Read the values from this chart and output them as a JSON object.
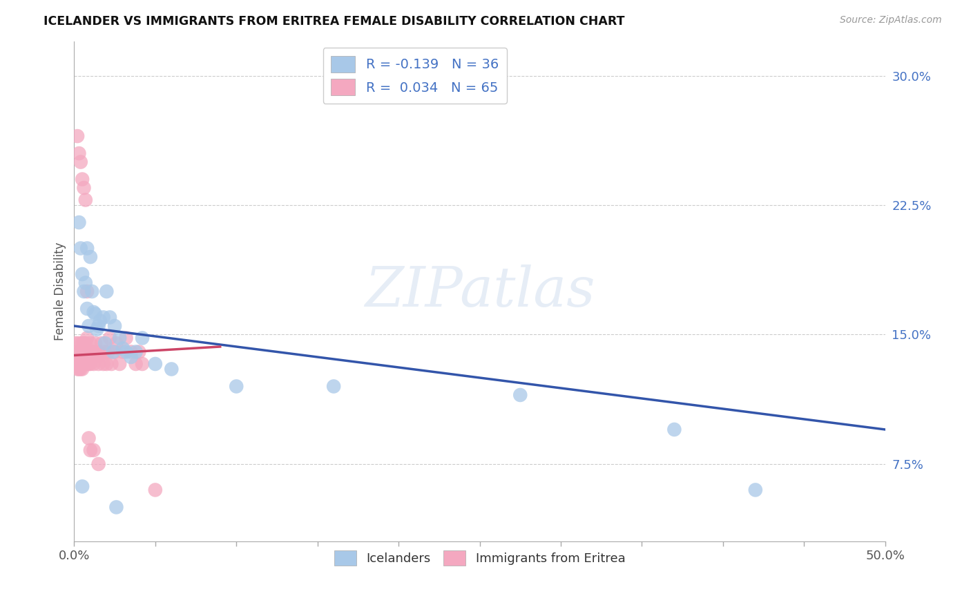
{
  "title": "ICELANDER VS IMMIGRANTS FROM ERITREA FEMALE DISABILITY CORRELATION CHART",
  "source": "Source: ZipAtlas.com",
  "ylabel": "Female Disability",
  "xlim": [
    0,
    0.5
  ],
  "ylim": [
    0.03,
    0.32
  ],
  "xticks": [
    0.0,
    0.05,
    0.1,
    0.15,
    0.2,
    0.25,
    0.3,
    0.35,
    0.4,
    0.45,
    0.5
  ],
  "xtick_labels_show": [
    "0.0%",
    "",
    "",
    "",
    "",
    "",
    "",
    "",
    "",
    "",
    "50.0%"
  ],
  "yticks_right": [
    0.075,
    0.15,
    0.225,
    0.3
  ],
  "ytick_labels_right": [
    "7.5%",
    "15.0%",
    "22.5%",
    "30.0%"
  ],
  "icelanders_color": "#a8c8e8",
  "eritrea_color": "#f4a8c0",
  "trend_blue_color": "#3355aa",
  "trend_pink_color": "#cc4466",
  "icelanders_x": [
    0.003,
    0.004,
    0.005,
    0.006,
    0.007,
    0.008,
    0.009,
    0.01,
    0.011,
    0.012,
    0.013,
    0.015,
    0.016,
    0.018,
    0.02,
    0.022,
    0.025,
    0.028,
    0.03,
    0.032,
    0.035,
    0.038,
    0.042,
    0.008,
    0.014,
    0.019,
    0.024,
    0.05,
    0.06,
    0.1,
    0.16,
    0.275,
    0.37,
    0.42,
    0.005,
    0.026
  ],
  "icelanders_y": [
    0.215,
    0.2,
    0.185,
    0.175,
    0.18,
    0.165,
    0.155,
    0.195,
    0.175,
    0.163,
    0.162,
    0.155,
    0.158,
    0.16,
    0.175,
    0.16,
    0.155,
    0.148,
    0.142,
    0.14,
    0.137,
    0.14,
    0.148,
    0.2,
    0.153,
    0.145,
    0.14,
    0.133,
    0.13,
    0.12,
    0.12,
    0.115,
    0.095,
    0.06,
    0.062,
    0.05
  ],
  "eritrea_x": [
    0.001,
    0.001,
    0.002,
    0.002,
    0.002,
    0.003,
    0.003,
    0.003,
    0.004,
    0.004,
    0.005,
    0.005,
    0.005,
    0.005,
    0.006,
    0.006,
    0.006,
    0.006,
    0.007,
    0.007,
    0.007,
    0.008,
    0.008,
    0.008,
    0.009,
    0.009,
    0.01,
    0.01,
    0.01,
    0.011,
    0.012,
    0.012,
    0.013,
    0.014,
    0.015,
    0.015,
    0.016,
    0.017,
    0.018,
    0.019,
    0.02,
    0.021,
    0.022,
    0.023,
    0.025,
    0.026,
    0.028,
    0.03,
    0.032,
    0.035,
    0.038,
    0.04,
    0.042,
    0.002,
    0.003,
    0.004,
    0.005,
    0.006,
    0.007,
    0.008,
    0.009,
    0.01,
    0.012,
    0.015,
    0.05
  ],
  "eritrea_y": [
    0.145,
    0.135,
    0.14,
    0.135,
    0.13,
    0.135,
    0.13,
    0.145,
    0.13,
    0.14,
    0.135,
    0.13,
    0.14,
    0.145,
    0.133,
    0.14,
    0.135,
    0.145,
    0.133,
    0.138,
    0.145,
    0.133,
    0.14,
    0.148,
    0.133,
    0.14,
    0.14,
    0.145,
    0.133,
    0.138,
    0.14,
    0.133,
    0.145,
    0.138,
    0.14,
    0.133,
    0.138,
    0.145,
    0.133,
    0.14,
    0.133,
    0.14,
    0.148,
    0.133,
    0.14,
    0.145,
    0.133,
    0.14,
    0.148,
    0.14,
    0.133,
    0.14,
    0.133,
    0.265,
    0.255,
    0.25,
    0.24,
    0.235,
    0.228,
    0.175,
    0.09,
    0.083,
    0.083,
    0.075,
    0.06
  ],
  "grid_color": "#cccccc",
  "background_color": "#ffffff",
  "ice_trend_x0": 0.0,
  "ice_trend_x1": 0.5,
  "ice_trend_y0": 0.155,
  "ice_trend_y1": 0.095,
  "eri_trend_x0": 0.0,
  "eri_trend_x1": 0.09,
  "eri_trend_y0": 0.138,
  "eri_trend_y1": 0.143
}
